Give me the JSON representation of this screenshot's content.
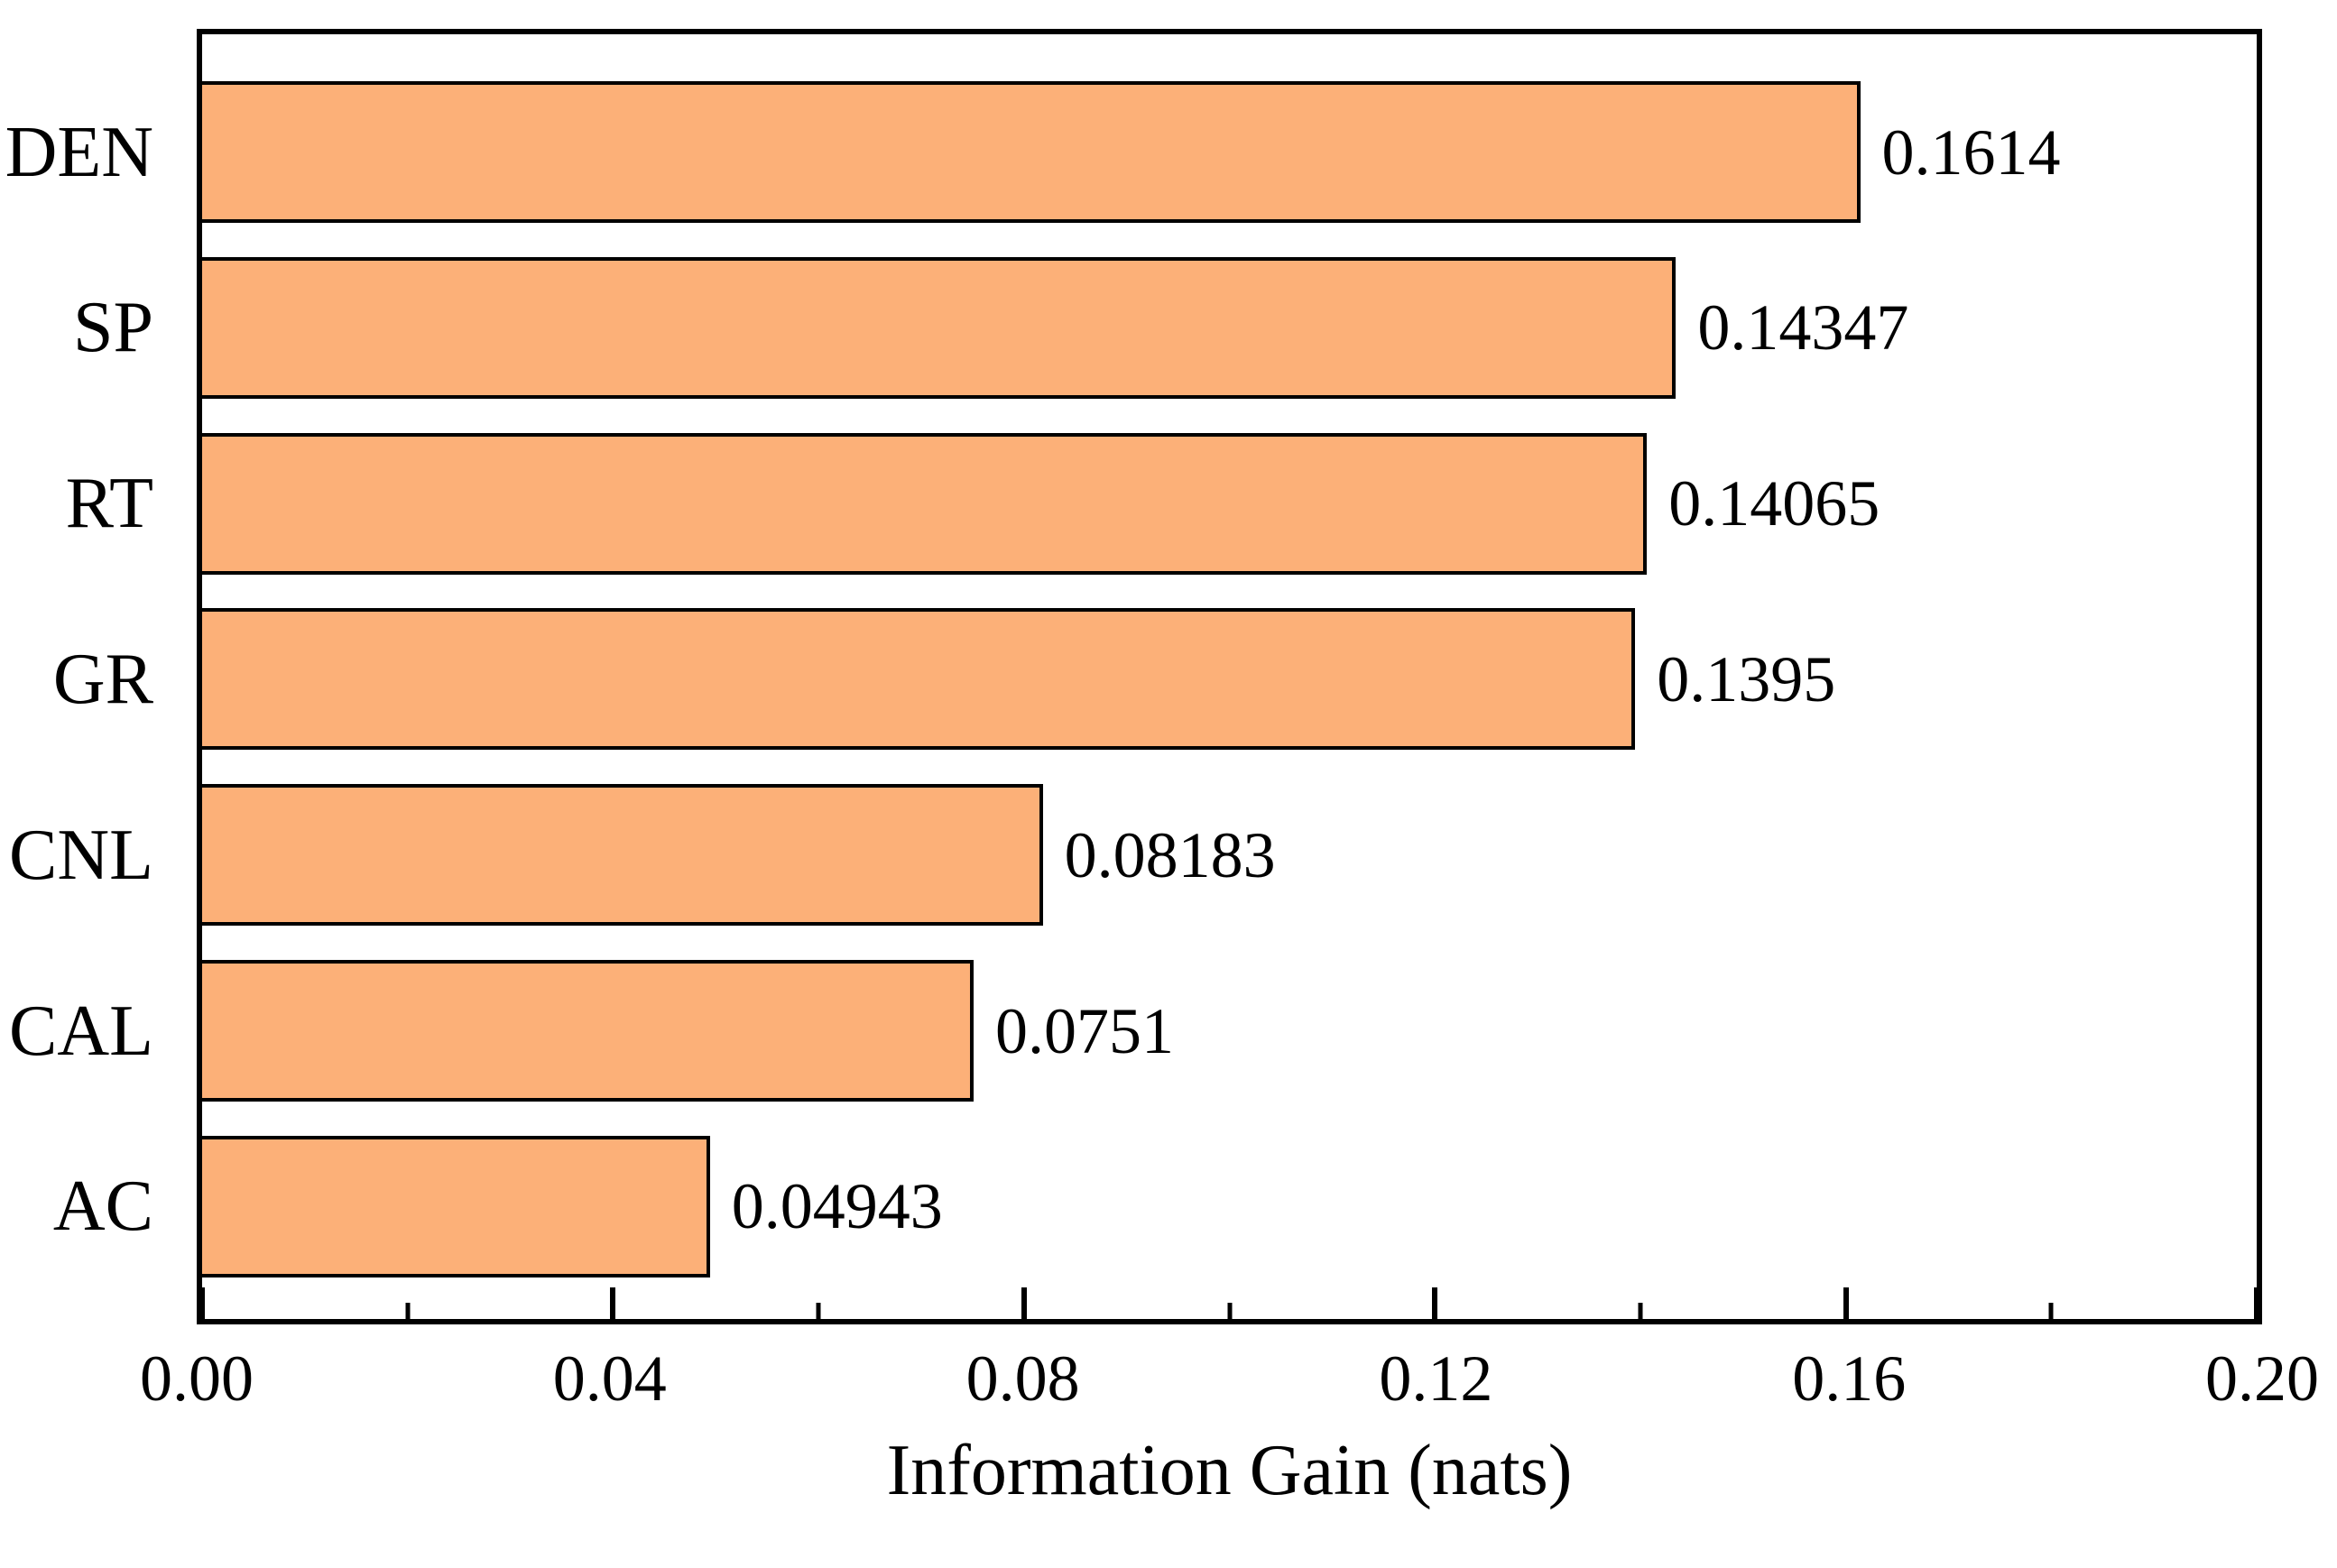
{
  "chart_data": {
    "type": "bar",
    "orientation": "horizontal",
    "title": "",
    "xlabel": "Information Gain (nats)",
    "ylabel": "",
    "categories": [
      "DEN",
      "SP",
      "RT",
      "GR",
      "CNL",
      "CAL",
      "AC"
    ],
    "values": [
      0.1614,
      0.14347,
      0.14065,
      0.1395,
      0.08183,
      0.0751,
      0.04943
    ],
    "value_labels": [
      "0.1614",
      "0.14347",
      "0.14065",
      "0.1395",
      "0.08183",
      "0.0751",
      "0.04943"
    ],
    "xlim": [
      0.0,
      0.2
    ],
    "x_major_ticks": [
      0.0,
      0.04,
      0.08,
      0.12,
      0.16,
      0.2
    ],
    "x_major_tick_labels": [
      "0.00",
      "0.04",
      "0.08",
      "0.12",
      "0.16",
      "0.20"
    ],
    "x_minor_ticks": [
      0.02,
      0.06,
      0.1,
      0.14,
      0.18
    ],
    "grid": false,
    "legend": false,
    "bar_fill_color": "#FCB078",
    "bar_border_color": "#000000",
    "axis_color": "#000000"
  }
}
